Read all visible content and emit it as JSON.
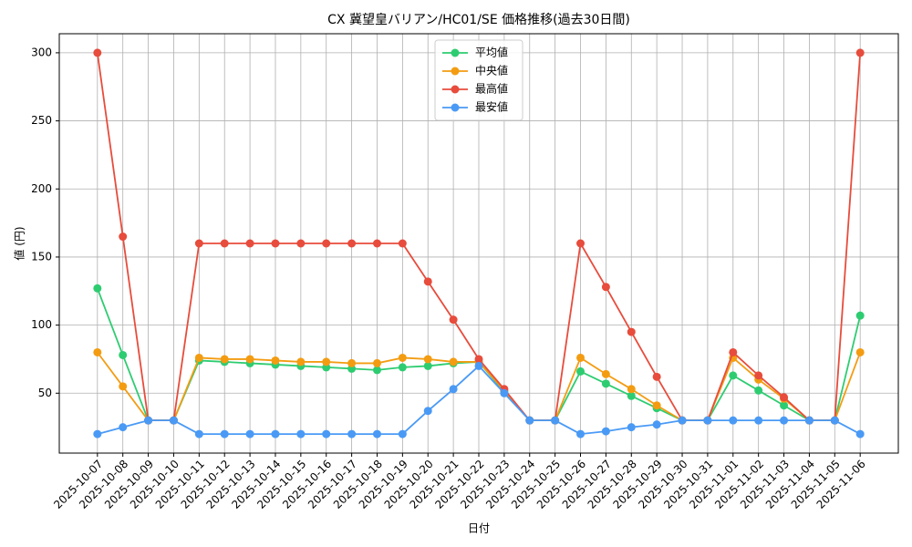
{
  "chart_data": {
    "type": "line",
    "title": "CX 冀望皇バリアン/HC01/SE 価格推移(過去30日間)",
    "x_label": "日付",
    "y_label": "値 (円)",
    "categories": [
      "2025-10-07",
      "2025-10-08",
      "2025-10-09",
      "2025-10-10",
      "2025-10-11",
      "2025-10-12",
      "2025-10-13",
      "2025-10-14",
      "2025-10-15",
      "2025-10-16",
      "2025-10-17",
      "2025-10-18",
      "2025-10-19",
      "2025-10-20",
      "2025-10-21",
      "2025-10-22",
      "2025-10-23",
      "2025-10-24",
      "2025-10-25",
      "2025-10-26",
      "2025-10-27",
      "2025-10-28",
      "2025-10-29",
      "2025-10-30",
      "2025-10-31",
      "2025-11-01",
      "2025-11-02",
      "2025-11-03",
      "2025-11-04",
      "2025-11-05",
      "2025-11-06"
    ],
    "series": [
      {
        "name": "平均値",
        "color": "#2ecc71",
        "values": [
          127,
          78,
          30,
          30,
          74,
          73,
          72,
          71,
          70,
          69,
          68,
          67,
          69,
          70,
          72,
          73,
          51,
          30,
          30,
          66,
          57,
          48,
          39,
          30,
          30,
          63,
          52,
          41,
          30,
          30,
          107
        ]
      },
      {
        "name": "中央値",
        "color": "#f39c12",
        "values": [
          80,
          55,
          30,
          30,
          76,
          75,
          75,
          74,
          73,
          73,
          72,
          72,
          76,
          75,
          73,
          73,
          52,
          30,
          30,
          76,
          64,
          53,
          41,
          30,
          30,
          76,
          60,
          46,
          30,
          30,
          80
        ]
      },
      {
        "name": "最高値",
        "color": "#e74c3c",
        "values": [
          300,
          165,
          30,
          30,
          160,
          160,
          160,
          160,
          160,
          160,
          160,
          160,
          160,
          132,
          104,
          75,
          53,
          30,
          30,
          160,
          128,
          95,
          62,
          30,
          30,
          80,
          63,
          47,
          30,
          30,
          300
        ]
      },
      {
        "name": "最安値",
        "color": "#4a9af5",
        "values": [
          20,
          25,
          30,
          30,
          20,
          20,
          20,
          20,
          20,
          20,
          20,
          20,
          20,
          37,
          53,
          70,
          50,
          30,
          30,
          20,
          22,
          25,
          27,
          30,
          30,
          30,
          30,
          30,
          30,
          30,
          20
        ]
      }
    ],
    "ylim": [
      6,
      314
    ],
    "yticks": [
      50,
      100,
      150,
      200,
      250,
      300
    ],
    "grid": true,
    "legend": "upper center"
  }
}
